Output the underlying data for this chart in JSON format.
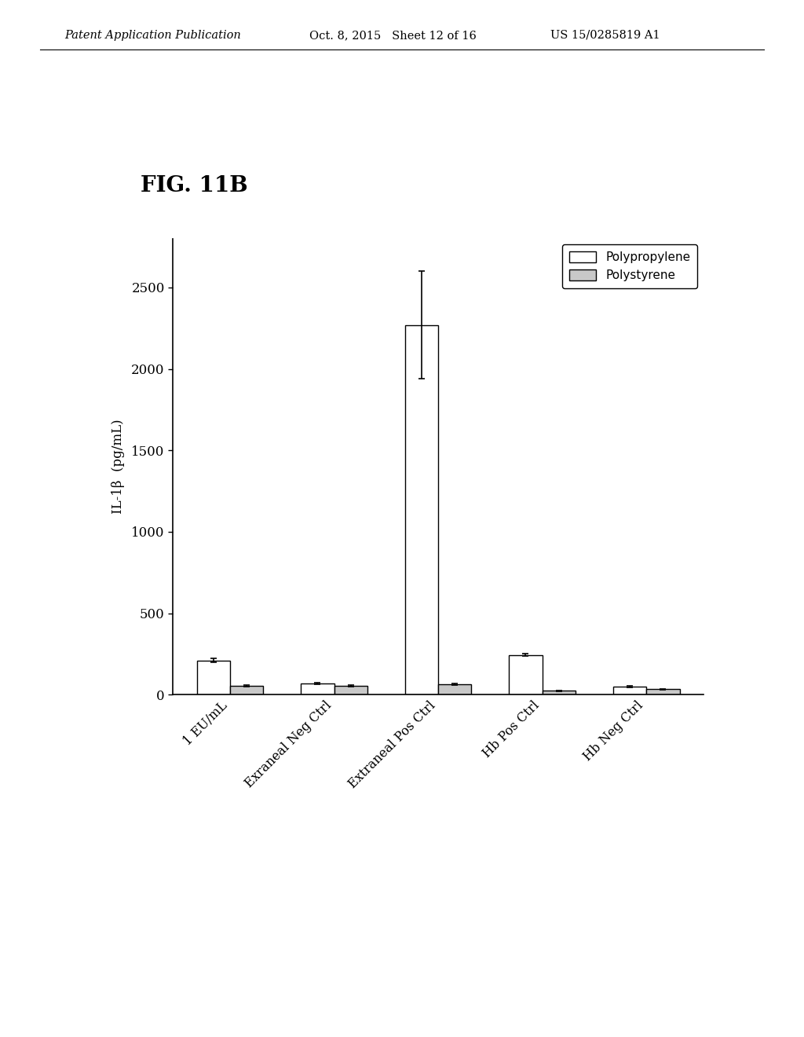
{
  "categories": [
    "1 EU/mL",
    "Exraneal Neg Ctrl",
    "Extraneal Pos Ctrl",
    "Hb Pos Ctrl",
    "Hb Neg Ctrl"
  ],
  "polypropylene_values": [
    210,
    70,
    2270,
    245,
    50
  ],
  "polystyrene_values": [
    55,
    55,
    65,
    25,
    35
  ],
  "polypropylene_errors": [
    12,
    4,
    330,
    8,
    5
  ],
  "polystyrene_errors": [
    3,
    3,
    3,
    3,
    3
  ],
  "ylabel": "IL-1β  (pg/mL)",
  "fig_label": "FIG. 11B",
  "legend_labels": [
    "Polypropylene",
    "Polystyrene"
  ],
  "ylim": [
    0,
    2800
  ],
  "yticks": [
    0,
    500,
    1000,
    1500,
    2000,
    2500
  ],
  "bar_width": 0.32,
  "polypropylene_color": "#ffffff",
  "polystyrene_color": "#c8c8c8",
  "edge_color": "#000000",
  "background_color": "#ffffff",
  "header_text": "Patent Application Publication",
  "header_date": "Oct. 8, 2015   Sheet 12 of 16",
  "header_patent": "US 15/0285819 A1"
}
